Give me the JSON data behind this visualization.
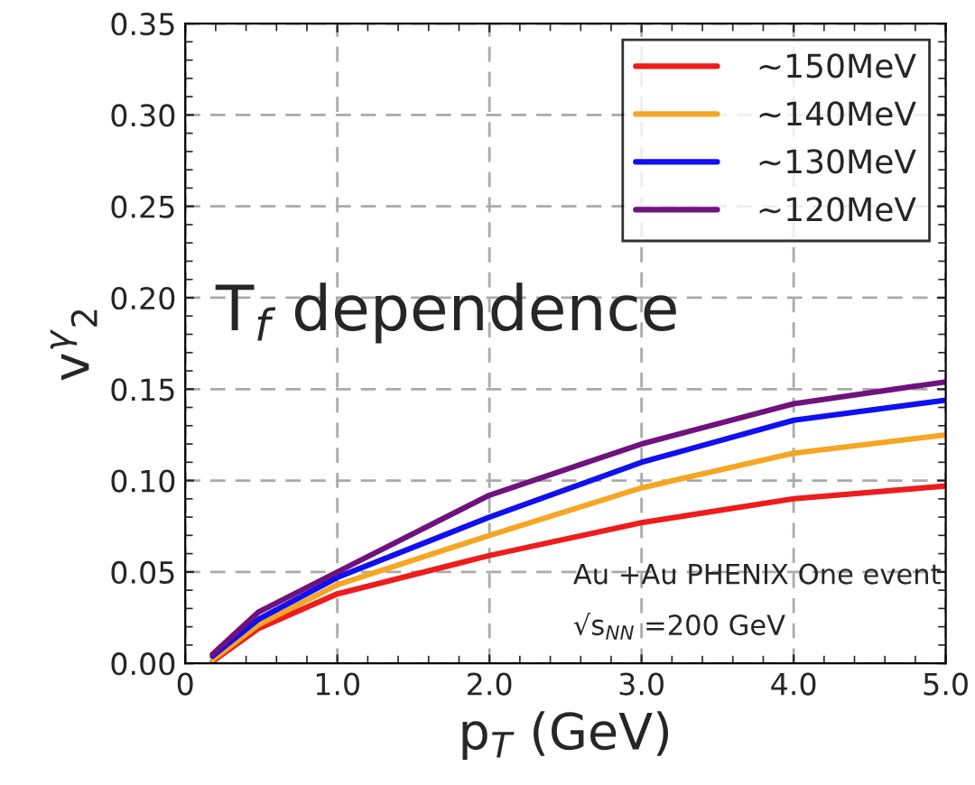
{
  "chart_data": {
    "type": "line",
    "xlabel": "p$_{T}$ (GeV)",
    "ylabel": "v$^{γ}$$_{2}$",
    "x": [
      0.18,
      0.48,
      1.0,
      2.0,
      3.0,
      4.0,
      5.0
    ],
    "series": [
      {
        "name": "~150MeV",
        "color": "#ee1c1c",
        "values": [
          0.001,
          0.019,
          0.038,
          0.059,
          0.077,
          0.09,
          0.097
        ]
      },
      {
        "name": "~140MeV",
        "color": "#f5a623",
        "values": [
          0.002,
          0.021,
          0.043,
          0.07,
          0.096,
          0.115,
          0.125
        ]
      },
      {
        "name": "~130MeV",
        "color": "#1010f0",
        "values": [
          0.004,
          0.024,
          0.047,
          0.08,
          0.11,
          0.133,
          0.144
        ]
      },
      {
        "name": "~120MeV",
        "color": "#70127e",
        "values": [
          0.005,
          0.028,
          0.05,
          0.092,
          0.12,
          0.142,
          0.154
        ]
      }
    ],
    "xlim": [
      0,
      5
    ],
    "xticks": [
      0,
      {
        "value": 1,
        "label": "1.0"
      },
      {
        "value": 2,
        "label": "2.0"
      },
      {
        "value": 3,
        "label": "3.0"
      },
      {
        "value": 4,
        "label": "4.0"
      },
      {
        "value": 5,
        "label": "5.0"
      }
    ],
    "ylim": [
      0,
      0.35
    ],
    "yticks": [
      {
        "value": 0,
        "label": "0.00"
      },
      {
        "value": 0.05,
        "label": "0.05"
      },
      {
        "value": 0.1,
        "label": "0.10"
      },
      {
        "value": 0.15,
        "label": "0.15"
      },
      {
        "value": 0.2,
        "label": "0.20"
      },
      {
        "value": 0.25,
        "label": "0.25"
      },
      {
        "value": 0.3,
        "label": "0.30"
      },
      {
        "value": 0.35,
        "label": "0.35"
      }
    ],
    "annotations": [
      "T$_{f}$ dependence",
      "Au +Au PHENIX One event",
      "√s$_{NN}$ =200 GeV"
    ],
    "grid": true,
    "legend": "top right",
    "line_style": "solid",
    "marker": "none"
  }
}
